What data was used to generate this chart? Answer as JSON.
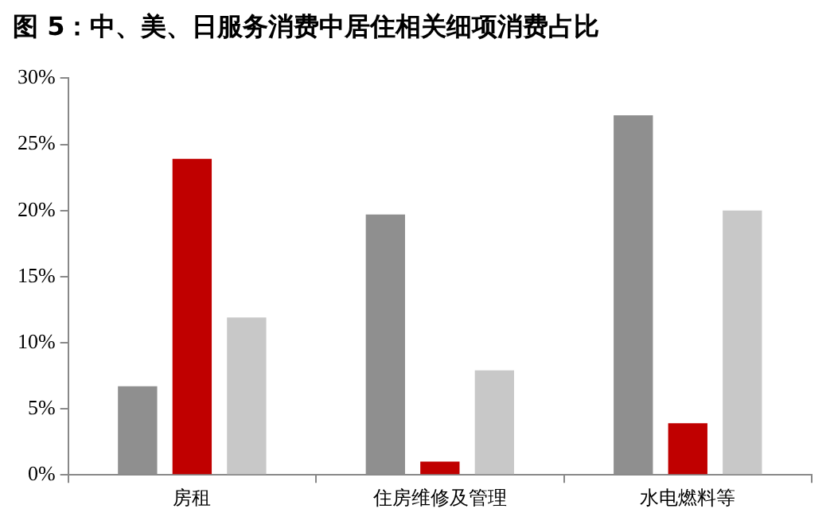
{
  "chart_data": {
    "type": "bar",
    "title": "图 5：中、美、日服务消费中居住相关细项消费占比",
    "categories": [
      "房租",
      "住房维修及管理",
      "水电燃料等"
    ],
    "series": [
      {
        "color": "#8f8f8f",
        "values": [
          6.7,
          19.7,
          27.2
        ]
      },
      {
        "color": "#c00000",
        "values": [
          23.9,
          1.0,
          3.9
        ]
      },
      {
        "color": "#c8c8c8",
        "values": [
          11.9,
          7.9,
          20.0
        ]
      }
    ],
    "ylim": [
      0,
      30
    ],
    "yticks": [
      {
        "value": 0,
        "label": "0%"
      },
      {
        "value": 5,
        "label": "5%"
      },
      {
        "value": 10,
        "label": "10%"
      },
      {
        "value": 15,
        "label": "15%"
      },
      {
        "value": 20,
        "label": "20%"
      },
      {
        "value": 25,
        "label": "25%"
      },
      {
        "value": 30,
        "label": "30%"
      }
    ]
  }
}
